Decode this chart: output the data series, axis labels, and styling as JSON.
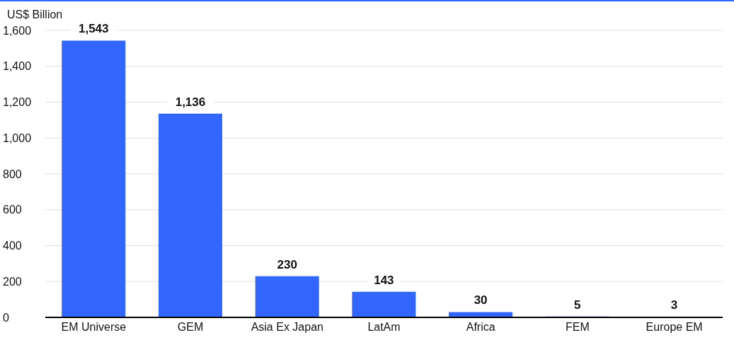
{
  "chart_data": {
    "type": "bar",
    "ylabel": "US$ Billion",
    "categories": [
      "EM Universe",
      "GEM",
      "Asia Ex Japan",
      "LatAm",
      "Africa",
      "FEM",
      "Europe EM"
    ],
    "values": [
      1543,
      1136,
      230,
      143,
      30,
      5,
      3
    ],
    "value_labels": [
      "1,543",
      "1,136",
      "230",
      "143",
      "30",
      "5",
      "3"
    ],
    "color": "#3366ff",
    "ylim": [
      0,
      1600
    ],
    "yticks": [
      0,
      200,
      400,
      600,
      800,
      {
        "value": 1000,
        "label": "1,000"
      },
      {
        "value": 1200,
        "label": "1,200"
      },
      {
        "value": 1400,
        "label": "1,400"
      },
      {
        "value": 1600,
        "label": "1,600"
      }
    ],
    "grid": "y"
  }
}
